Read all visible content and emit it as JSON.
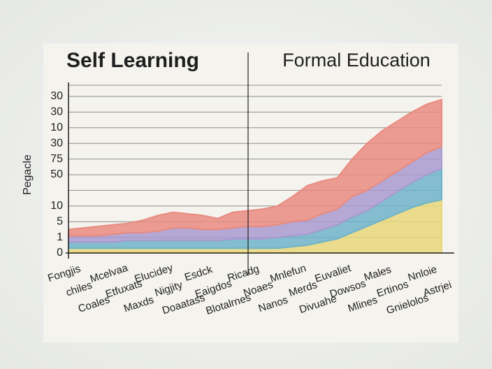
{
  "chart_data": {
    "type": "stacked-area",
    "titles": [
      "Self Learning",
      "Formal Education"
    ],
    "y_label": "Pegacle",
    "y_labels": [
      "0",
      "1",
      "5",
      "10",
      null,
      "50",
      "75",
      "30",
      "10",
      "30",
      "30"
    ],
    "categories": [
      "Fongjis",
      "chiles",
      "Coales",
      "Mcelvaa",
      "Etfuxats",
      "Maxds",
      "Elucidey",
      "Nigjity",
      "Doaatass",
      "Esdck",
      "Eaigdos",
      "Blotalrnes",
      "Ricadg",
      "Noaes",
      "Nanos",
      "Mnlefun",
      "Merds",
      "Divuahe",
      "Euvaliet",
      "Dowsos",
      "Mlines",
      "Males",
      "Ertinos",
      "Gnielolos",
      "Nnloie",
      "Astrjei"
    ],
    "grid": true,
    "series": [
      {
        "color": "#e8d77a",
        "values": [
          0.3,
          0.3,
          0.3,
          0.3,
          0.3,
          0.3,
          0.3,
          0.3,
          0.3,
          0.3,
          0.3,
          0.3,
          0.3,
          0.3,
          0.3,
          0.4,
          0.5,
          0.7,
          0.9,
          1.3,
          1.7,
          2.1,
          2.5,
          2.9,
          3.2,
          3.4
        ]
      },
      {
        "color": "#6fb3c9",
        "values": [
          0.4,
          0.4,
          0.4,
          0.4,
          0.5,
          0.5,
          0.5,
          0.5,
          0.5,
          0.5,
          0.5,
          0.6,
          0.6,
          0.6,
          0.7,
          0.7,
          0.7,
          0.8,
          0.9,
          1.0,
          1.0,
          1.2,
          1.4,
          1.6,
          1.8,
          2.0
        ]
      },
      {
        "color": "#a99ad0",
        "values": [
          0.4,
          0.4,
          0.4,
          0.5,
          0.5,
          0.5,
          0.6,
          0.8,
          0.8,
          0.7,
          0.7,
          0.7,
          0.8,
          0.8,
          0.8,
          0.9,
          0.9,
          1.0,
          1.0,
          1.3,
          1.3,
          1.3,
          1.3,
          1.3,
          1.4,
          1.4
        ]
      },
      {
        "color": "#e98b80",
        "values": [
          0.4,
          0.5,
          0.6,
          0.6,
          0.6,
          0.8,
          1.0,
          1.0,
          0.9,
          0.9,
          0.7,
          1.0,
          1.0,
          1.1,
          1.2,
          1.6,
          2.2,
          2.1,
          2.0,
          2.4,
          3.0,
          3.2,
          3.2,
          3.2,
          3.1,
          3.0
        ]
      }
    ]
  }
}
